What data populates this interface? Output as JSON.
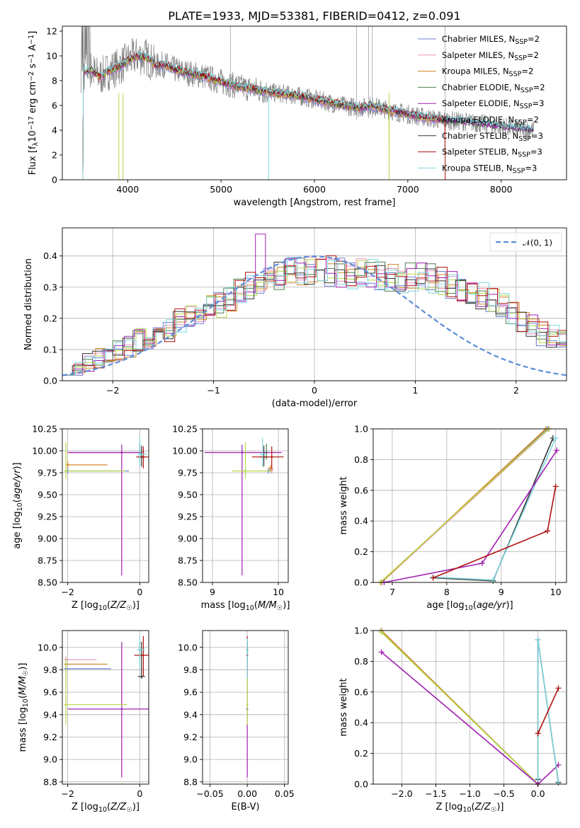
{
  "chart_data": [
    {
      "id": "spectrum",
      "type": "line",
      "title": "PLATE=1933, MJD=53381, FIBERID=0412, z=0.091",
      "xlabel": "wavelength [Angstrom, rest frame]",
      "ylabel": "Flux [f_λ 10^-17 erg cm^-2 s^-1 A^-1]",
      "xlim": [
        3300,
        8700
      ],
      "ylim": [
        0,
        12.4
      ],
      "xticks": [
        4000,
        5000,
        6000,
        7000,
        8000
      ],
      "yticks": [
        0,
        2,
        4,
        6,
        8,
        10,
        12
      ],
      "grid": false,
      "legend_position": "top-right",
      "data_color": "#808080",
      "continuum": {
        "x": [
          3500,
          3600,
          3700,
          3800,
          3900,
          4000,
          4100,
          4200,
          4300,
          4400,
          4500,
          4600,
          4800,
          5000,
          5200,
          5500,
          5800,
          6000,
          6300,
          6500,
          6600,
          6800,
          7000,
          7200,
          7400,
          7600,
          7800,
          8000,
          8200,
          8350
        ],
        "y": [
          8.6,
          8.9,
          8.3,
          8.8,
          9.1,
          9.6,
          10.0,
          9.9,
          9.2,
          9.3,
          8.9,
          8.7,
          8.4,
          7.9,
          7.5,
          7.1,
          6.8,
          6.5,
          6.0,
          5.8,
          6.0,
          5.6,
          5.3,
          5.0,
          4.8,
          4.7,
          4.5,
          4.3,
          4.1,
          4.0
        ]
      },
      "series": [
        {
          "name": "Chabrier MILES, N_SSP=2",
          "color": "#6c7fd8"
        },
        {
          "name": "Salpeter MILES, N_SSP=2",
          "color": "#e88fbe"
        },
        {
          "name": "Kroupa MILES, N_SSP=2",
          "color": "#d08628"
        },
        {
          "name": "Chabrier ELODIE, N_SSP=2",
          "color": "#4f7f4f"
        },
        {
          "name": "Salpeter ELODIE, N_SSP=3",
          "color": "#a020b0"
        },
        {
          "name": "Kroupa ELODIE, N_SSP=2",
          "color": "#b8d84a"
        },
        {
          "name": "Chabrier STELIB, N_SSP=3",
          "color": "#333333"
        },
        {
          "name": "Salpeter STELIB, N_SSP=3",
          "color": "#b01010"
        },
        {
          "name": "Kroupa STELIB, N_SSP=3",
          "color": "#7fd6e0"
        }
      ]
    },
    {
      "id": "residuals",
      "type": "line",
      "xlabel": "(data-model)/error",
      "ylabel": "Normed distribution",
      "xlim": [
        -2.5,
        2.5
      ],
      "ylim": [
        0,
        0.49
      ],
      "xticks": [
        -2,
        -1,
        0,
        1,
        2
      ],
      "yticks": [
        0.0,
        0.1,
        0.2,
        0.3,
        0.4
      ],
      "grid": true,
      "legend_position": "top-right",
      "reference": {
        "name": "𝒩(0, 1)",
        "color": "#5b8dd9"
      },
      "bin_width": 0.1,
      "mean_histogram": [
        0.05,
        0.05,
        0.06,
        0.07,
        0.08,
        0.1,
        0.11,
        0.13,
        0.14,
        0.15,
        0.16,
        0.19,
        0.2,
        0.21,
        0.23,
        0.24,
        0.26,
        0.28,
        0.3,
        0.32,
        0.34,
        0.34,
        0.35,
        0.35,
        0.36,
        0.36,
        0.35,
        0.35,
        0.34,
        0.35,
        0.34,
        0.34,
        0.33,
        0.32,
        0.33,
        0.34,
        0.33,
        0.32,
        0.31,
        0.3,
        0.29,
        0.27,
        0.26,
        0.24,
        0.21,
        0.19,
        0.18,
        0.15,
        0.14,
        0.13,
        0.1,
        0.09,
        0.08,
        0.07,
        0.06,
        0.05,
        0.05,
        0.04,
        0.04,
        0.03
      ],
      "spikes": [
        {
          "series": 4,
          "x": -0.55,
          "y": 0.47
        }
      ]
    },
    {
      "id": "age_vs_Z",
      "type": "scatter",
      "xlabel": "Z [log10(Z/Z☉)]",
      "ylabel": "age  [log10(age/yr)]",
      "xlim": [
        -2.15,
        0.25
      ],
      "ylim": [
        8.5,
        10.25
      ],
      "xticks": [
        -2,
        0
      ],
      "yticks": [
        8.5,
        8.75,
        9.0,
        9.25,
        9.5,
        9.75,
        10.0,
        10.25
      ],
      "grid": true,
      "points": [
        {
          "s": 0,
          "x": -2.0,
          "y": 9.77,
          "ex": [
            -2.05,
            -0.3
          ],
          "ey": [
            9.74,
            9.8
          ]
        },
        {
          "s": 1,
          "x": 0.0,
          "y": 9.98,
          "ex": [
            -2.0,
            0.15
          ],
          "ey": [
            9.95,
            10.05
          ]
        },
        {
          "s": 2,
          "x": -2.0,
          "y": 9.84,
          "ex": [
            -2.05,
            -0.9
          ],
          "ey": [
            9.8,
            9.88
          ]
        },
        {
          "s": 3,
          "x": 0.0,
          "y": 9.98,
          "ex": [
            -0.05,
            0.05
          ],
          "ey": [
            9.9,
            10.08
          ]
        },
        {
          "s": 4,
          "x": -0.5,
          "y": 9.98,
          "ex": [
            -2.0,
            0.0
          ],
          "ey": [
            8.58,
            10.07
          ]
        },
        {
          "s": 5,
          "x": -2.05,
          "y": 9.77,
          "ex": [
            -2.1,
            -0.4
          ],
          "ey": [
            9.68,
            10.1
          ]
        },
        {
          "s": 6,
          "x": 0.05,
          "y": 9.93,
          "ex": [
            -0.05,
            0.15
          ],
          "ey": [
            9.82,
            10.06
          ]
        },
        {
          "s": 7,
          "x": 0.1,
          "y": 9.93,
          "ex": [
            -0.1,
            0.28
          ],
          "ey": [
            9.8,
            10.05
          ]
        },
        {
          "s": 8,
          "x": 0.0,
          "y": 9.96,
          "ex": [
            -0.05,
            0.2
          ],
          "ey": [
            9.82,
            10.15
          ]
        }
      ]
    },
    {
      "id": "age_vs_mass",
      "type": "scatter",
      "xlabel": "mass [log10(M/M☉)]",
      "ylabel": "",
      "xlim": [
        8.85,
        10.15
      ],
      "ylim": [
        8.5,
        10.25
      ],
      "xticks": [
        9,
        10
      ],
      "yticks": [
        8.5,
        8.75,
        9.0,
        9.25,
        9.5,
        9.75,
        10.0,
        10.25
      ],
      "grid": true,
      "points": [
        {
          "s": 0,
          "x": 9.85,
          "y": 9.77,
          "ex": [
            9.82,
            9.88
          ],
          "ey": [
            9.74,
            9.8
          ]
        },
        {
          "s": 1,
          "x": 9.9,
          "y": 9.78,
          "ex": [
            9.86,
            9.93
          ],
          "ey": [
            9.74,
            9.82
          ]
        },
        {
          "s": 2,
          "x": 9.88,
          "y": 9.8,
          "ex": [
            9.84,
            9.92
          ],
          "ey": [
            9.76,
            9.84
          ]
        },
        {
          "s": 3,
          "x": 9.82,
          "y": 9.98,
          "ex": [
            9.76,
            9.86
          ],
          "ey": [
            9.9,
            10.08
          ]
        },
        {
          "s": 4,
          "x": 9.45,
          "y": 9.98,
          "ex": [
            8.88,
            10.05
          ],
          "ey": [
            8.58,
            10.07
          ]
        },
        {
          "s": 5,
          "x": 9.5,
          "y": 9.77,
          "ex": [
            9.3,
            9.9
          ],
          "ey": [
            9.68,
            10.1
          ]
        },
        {
          "s": 6,
          "x": 9.78,
          "y": 9.93,
          "ex": [
            9.72,
            9.85
          ],
          "ey": [
            9.82,
            10.06
          ]
        },
        {
          "s": 7,
          "x": 9.9,
          "y": 9.93,
          "ex": [
            9.6,
            10.08
          ],
          "ey": [
            9.8,
            10.05
          ]
        },
        {
          "s": 8,
          "x": 9.76,
          "y": 9.96,
          "ex": [
            9.72,
            9.82
          ],
          "ey": [
            9.82,
            10.15
          ]
        }
      ]
    },
    {
      "id": "massweight_vs_age",
      "type": "line",
      "xlabel": "age  [log10(age/yr)]",
      "ylabel": "mass weight",
      "xlim": [
        6.65,
        10.2
      ],
      "ylim": [
        0,
        1.0
      ],
      "xticks": [
        7,
        8,
        9,
        10
      ],
      "yticks": [
        0.0,
        0.2,
        0.4,
        0.6,
        0.8,
        1.0
      ],
      "grid": true,
      "lines": [
        {
          "s": 0,
          "x": [
            6.8,
            9.85
          ],
          "y": [
            0.0,
            1.0
          ]
        },
        {
          "s": 1,
          "x": [
            6.8,
            9.88
          ],
          "y": [
            0.0,
            1.0
          ]
        },
        {
          "s": 2,
          "x": [
            6.8,
            9.82
          ],
          "y": [
            0.0,
            1.0
          ]
        },
        {
          "s": 5,
          "x": [
            6.78,
            9.87
          ],
          "y": [
            0.0,
            1.0
          ]
        },
        {
          "s": 6,
          "x": [
            7.75,
            8.85,
            9.95
          ],
          "y": [
            0.03,
            0.01,
            0.94
          ]
        },
        {
          "s": 8,
          "x": [
            7.75,
            8.85,
            10.0
          ],
          "y": [
            0.035,
            0.015,
            0.94
          ]
        },
        {
          "s": 4,
          "x": [
            6.85,
            8.65,
            10.02
          ],
          "y": [
            0.0,
            0.125,
            0.86
          ]
        },
        {
          "s": 7,
          "x": [
            7.75,
            9.85,
            10.0
          ],
          "y": [
            0.03,
            0.335,
            0.625
          ]
        }
      ]
    },
    {
      "id": "mass_vs_Z",
      "type": "scatter",
      "xlabel": "Z [log10(Z/Z☉)]",
      "ylabel": "mass [log10(M/M☉)]",
      "xlim": [
        -2.15,
        0.25
      ],
      "ylim": [
        8.78,
        10.15
      ],
      "xticks": [
        -2,
        0
      ],
      "yticks": [
        8.8,
        9.0,
        9.2,
        9.4,
        9.6,
        9.8,
        10.0
      ],
      "grid": true,
      "points": [
        {
          "s": 0,
          "x": -2.05,
          "y": 9.81,
          "ex": [
            -2.1,
            -0.8
          ],
          "ey": [
            9.78,
            9.84
          ]
        },
        {
          "s": 1,
          "x": -2.05,
          "y": 9.89,
          "ex": [
            -2.1,
            -1.2
          ],
          "ey": [
            9.86,
            9.92
          ]
        },
        {
          "s": 2,
          "x": -2.05,
          "y": 9.85,
          "ex": [
            -2.1,
            -0.9
          ],
          "ey": [
            9.82,
            9.88
          ]
        },
        {
          "s": 3,
          "x": 0.0,
          "y": 9.98,
          "ex": [
            -0.05,
            0.05
          ],
          "ey": [
            9.9,
            10.05
          ]
        },
        {
          "s": 4,
          "x": -0.5,
          "y": 9.45,
          "ex": [
            -2.0,
            0.25
          ],
          "ey": [
            8.84,
            10.05
          ]
        },
        {
          "s": 5,
          "x": -2.05,
          "y": 9.49,
          "ex": [
            -2.1,
            -0.35
          ],
          "ey": [
            9.31,
            9.9
          ]
        },
        {
          "s": 6,
          "x": 0.05,
          "y": 9.74,
          "ex": [
            -0.05,
            0.15
          ],
          "ey": [
            9.72,
            10.05
          ]
        },
        {
          "s": 7,
          "x": 0.1,
          "y": 9.93,
          "ex": [
            -0.15,
            0.3
          ],
          "ey": [
            9.74,
            10.1
          ]
        },
        {
          "s": 8,
          "x": 0.0,
          "y": 9.98,
          "ex": [
            -0.08,
            0.15
          ],
          "ey": [
            9.8,
            10.1
          ]
        }
      ]
    },
    {
      "id": "mass_vs_ebv",
      "type": "scatter",
      "xlabel": "E(B-V)",
      "ylabel": "",
      "xlim": [
        -0.06,
        0.055
      ],
      "ylim": [
        8.78,
        10.15
      ],
      "xticks": [
        -0.05,
        0.0,
        0.05
      ],
      "yticks": [
        8.8,
        9.0,
        9.2,
        9.4,
        9.6,
        9.8,
        10.0
      ],
      "grid": true,
      "points": [
        {
          "s": 4,
          "x": 0.0,
          "y": 9.45,
          "ey": [
            8.84,
            10.05
          ]
        },
        {
          "s": 5,
          "x": 0.0,
          "y": 9.49,
          "ey": [
            9.31,
            9.9
          ]
        },
        {
          "s": 7,
          "x": 0.0,
          "y": 9.93,
          "ey": [
            9.74,
            10.1
          ]
        },
        {
          "s": 3,
          "x": 0.0,
          "y": 9.98,
          "ey": [
            9.85,
            10.06
          ]
        },
        {
          "s": 8,
          "x": 0.0,
          "y": 9.96,
          "ey": [
            9.72,
            10.08
          ]
        }
      ]
    },
    {
      "id": "massweight_vs_Z",
      "type": "line",
      "xlabel": "Z [log10(Z/Z☉)]",
      "ylabel": "mass weight",
      "xlim": [
        -2.42,
        0.42
      ],
      "ylim": [
        0,
        1.0
      ],
      "xticks": [
        -2.0,
        -1.5,
        -1.0,
        -0.5,
        0.0
      ],
      "yticks": [
        0.0,
        0.2,
        0.4,
        0.6,
        0.8,
        1.0
      ],
      "grid": true,
      "lines": [
        {
          "s": 0,
          "x": [
            -2.3,
            0.0
          ],
          "y": [
            1.0,
            0.0
          ]
        },
        {
          "s": 1,
          "x": [
            -2.3,
            0.0
          ],
          "y": [
            1.0,
            0.0
          ]
        },
        {
          "s": 2,
          "x": [
            -2.3,
            0.0
          ],
          "y": [
            1.0,
            0.0
          ]
        },
        {
          "s": 5,
          "x": [
            -2.3,
            0.0
          ],
          "y": [
            0.99,
            0.0
          ]
        },
        {
          "s": 4,
          "x": [
            -2.3,
            0.0,
            0.3
          ],
          "y": [
            0.86,
            0.0,
            0.125
          ]
        },
        {
          "s": 6,
          "x": [
            0.0,
            0.0,
            0.3
          ],
          "y": [
            0.03,
            0.94,
            0.01
          ]
        },
        {
          "s": 8,
          "x": [
            0.0,
            0.0,
            0.3
          ],
          "y": [
            0.035,
            0.94,
            0.015
          ]
        },
        {
          "s": 7,
          "x": [
            0.0,
            0.0,
            0.3
          ],
          "y": [
            0.33,
            0.33,
            0.625
          ]
        }
      ]
    }
  ]
}
